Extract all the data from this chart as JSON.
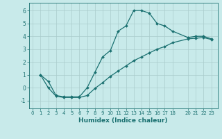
{
  "xlabel": "Humidex (Indice chaleur)",
  "bg_color": "#c8eaea",
  "grid_color": "#aacccc",
  "line_color": "#1a7070",
  "xlim": [
    -0.5,
    23.8
  ],
  "ylim": [
    -1.6,
    6.6
  ],
  "xticks": [
    0,
    1,
    2,
    3,
    4,
    5,
    6,
    7,
    8,
    9,
    10,
    11,
    12,
    13,
    14,
    15,
    16,
    17,
    18,
    20,
    21,
    22,
    23
  ],
  "yticks": [
    -1,
    0,
    1,
    2,
    3,
    4,
    5,
    6
  ],
  "line1_x": [
    1,
    2,
    3,
    4,
    5,
    6,
    7,
    8,
    9,
    10,
    11,
    12,
    13,
    14,
    15,
    16,
    17,
    18,
    20,
    21,
    22,
    23
  ],
  "line1_y": [
    1.0,
    0.5,
    -0.6,
    -0.7,
    -0.7,
    -0.7,
    0.0,
    1.2,
    2.4,
    2.9,
    4.4,
    4.8,
    6.0,
    6.0,
    5.8,
    5.0,
    4.8,
    4.4,
    3.9,
    4.0,
    4.0,
    3.8
  ],
  "line2_x": [
    1,
    2,
    3,
    4,
    5,
    6,
    7,
    8,
    9,
    10,
    11,
    12,
    13,
    14,
    15,
    16,
    17,
    18,
    20,
    21,
    22,
    23
  ],
  "line2_y": [
    1.0,
    0.0,
    -0.65,
    -0.75,
    -0.75,
    -0.75,
    -0.6,
    -0.05,
    0.4,
    0.9,
    1.3,
    1.7,
    2.1,
    2.4,
    2.7,
    3.0,
    3.2,
    3.5,
    3.8,
    3.85,
    3.9,
    3.75
  ]
}
